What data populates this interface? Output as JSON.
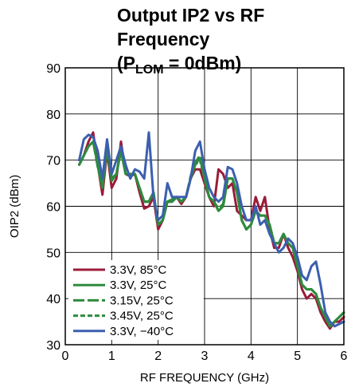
{
  "chart_data": {
    "type": "line",
    "title_line1": "Output IP2 vs RF Frequency",
    "title_line2_prefix": "(P",
    "title_line2_sub": "LOM",
    "title_line2_suffix": " = 0dBm)",
    "xlabel": "RF FREQUENCY (GHz)",
    "ylabel": "OIP2 (dBm)",
    "xlim": [
      0,
      6
    ],
    "ylim": [
      30,
      90
    ],
    "xticks": [
      "0",
      "1",
      "2",
      "3",
      "4",
      "5",
      "6"
    ],
    "yticks": [
      "30",
      "40",
      "50",
      "60",
      "70",
      "80",
      "90"
    ],
    "grid": true,
    "legend_position": "bottom-left",
    "series": [
      {
        "name": "3.3V, 85°C",
        "color": "#9b1b3a",
        "dash": "solid",
        "points": [
          [
            0.3,
            69
          ],
          [
            0.4,
            71
          ],
          [
            0.5,
            74
          ],
          [
            0.6,
            76
          ],
          [
            0.7,
            69
          ],
          [
            0.8,
            62.5
          ],
          [
            0.9,
            72
          ],
          [
            1.0,
            64
          ],
          [
            1.1,
            66
          ],
          [
            1.2,
            74
          ],
          [
            1.3,
            67
          ],
          [
            1.4,
            66.5
          ],
          [
            1.5,
            67
          ],
          [
            1.6,
            63
          ],
          [
            1.7,
            59.5
          ],
          [
            1.8,
            60
          ],
          [
            1.9,
            62
          ],
          [
            2.0,
            55
          ],
          [
            2.1,
            57
          ],
          [
            2.2,
            61
          ],
          [
            2.3,
            61
          ],
          [
            2.4,
            62
          ],
          [
            2.5,
            60.5
          ],
          [
            2.6,
            62
          ],
          [
            2.7,
            66
          ],
          [
            2.8,
            68
          ],
          [
            2.9,
            68
          ],
          [
            3.0,
            65
          ],
          [
            3.1,
            62
          ],
          [
            3.2,
            60
          ],
          [
            3.3,
            68
          ],
          [
            3.4,
            67
          ],
          [
            3.5,
            64
          ],
          [
            3.6,
            65
          ],
          [
            3.7,
            59
          ],
          [
            3.8,
            58
          ],
          [
            3.9,
            57
          ],
          [
            4.0,
            57
          ],
          [
            4.1,
            62
          ],
          [
            4.2,
            59
          ],
          [
            4.3,
            62
          ],
          [
            4.4,
            55
          ],
          [
            4.5,
            51
          ],
          [
            4.6,
            51
          ],
          [
            4.7,
            54
          ],
          [
            4.8,
            51
          ],
          [
            4.9,
            49
          ],
          [
            5.0,
            46
          ],
          [
            5.1,
            42
          ],
          [
            5.2,
            40
          ],
          [
            5.3,
            41
          ],
          [
            5.4,
            40
          ],
          [
            5.5,
            37
          ],
          [
            5.6,
            35
          ],
          [
            5.7,
            33.5
          ],
          [
            5.8,
            35
          ],
          [
            5.9,
            35
          ],
          [
            6.0,
            36
          ]
        ]
      },
      {
        "name": "3.3V, 25°C",
        "color": "#2e8b3e",
        "dash": "solid",
        "points": [
          [
            0.3,
            69
          ],
          [
            0.4,
            71
          ],
          [
            0.5,
            73
          ],
          [
            0.6,
            74
          ],
          [
            0.7,
            69
          ],
          [
            0.8,
            64
          ],
          [
            0.9,
            73
          ],
          [
            1.0,
            66
          ],
          [
            1.1,
            67
          ],
          [
            1.2,
            72
          ],
          [
            1.3,
            67
          ],
          [
            1.4,
            67
          ],
          [
            1.5,
            67
          ],
          [
            1.6,
            64
          ],
          [
            1.7,
            61
          ],
          [
            1.8,
            61
          ],
          [
            1.9,
            63
          ],
          [
            2.0,
            56
          ],
          [
            2.1,
            57
          ],
          [
            2.2,
            61
          ],
          [
            2.3,
            61
          ],
          [
            2.4,
            62
          ],
          [
            2.5,
            61
          ],
          [
            2.6,
            62
          ],
          [
            2.7,
            66
          ],
          [
            2.8,
            69
          ],
          [
            2.9,
            70.5
          ],
          [
            3.0,
            66
          ],
          [
            3.1,
            62
          ],
          [
            3.2,
            61
          ],
          [
            3.3,
            59
          ],
          [
            3.4,
            60
          ],
          [
            3.5,
            66
          ],
          [
            3.6,
            66
          ],
          [
            3.7,
            63
          ],
          [
            3.8,
            57
          ],
          [
            3.9,
            55
          ],
          [
            4.0,
            56
          ],
          [
            4.1,
            59
          ],
          [
            4.2,
            58
          ],
          [
            4.3,
            58
          ],
          [
            4.4,
            56
          ],
          [
            4.5,
            52
          ],
          [
            4.6,
            52
          ],
          [
            4.7,
            54
          ],
          [
            4.8,
            52
          ],
          [
            4.9,
            51
          ],
          [
            5.0,
            47
          ],
          [
            5.1,
            43
          ],
          [
            5.2,
            42
          ],
          [
            5.3,
            42
          ],
          [
            5.4,
            41
          ],
          [
            5.5,
            38
          ],
          [
            5.6,
            36
          ],
          [
            5.7,
            34
          ],
          [
            5.8,
            35
          ],
          [
            5.9,
            36
          ],
          [
            6.0,
            37
          ]
        ]
      },
      {
        "name": "3.15V, 25°C",
        "color": "#2e8b3e",
        "dash": "long",
        "points": [
          [
            0.3,
            69
          ],
          [
            0.4,
            71
          ],
          [
            0.5,
            73
          ],
          [
            0.6,
            74
          ],
          [
            0.7,
            68.5
          ],
          [
            0.8,
            64
          ],
          [
            0.9,
            72.5
          ],
          [
            1.0,
            65.5
          ],
          [
            1.1,
            67
          ],
          [
            1.2,
            72.5
          ],
          [
            1.3,
            67
          ],
          [
            1.4,
            67
          ],
          [
            1.5,
            67
          ],
          [
            1.6,
            64
          ],
          [
            1.7,
            61
          ],
          [
            1.8,
            61
          ],
          [
            1.9,
            63
          ],
          [
            2.0,
            56
          ],
          [
            2.1,
            57
          ],
          [
            2.2,
            61
          ],
          [
            2.3,
            61.5
          ],
          [
            2.4,
            62
          ],
          [
            2.5,
            61
          ],
          [
            2.6,
            62
          ],
          [
            2.7,
            66.5
          ],
          [
            2.8,
            69.5
          ],
          [
            2.9,
            71
          ],
          [
            3.0,
            66
          ],
          [
            3.1,
            62
          ],
          [
            3.2,
            61
          ],
          [
            3.3,
            59.5
          ],
          [
            3.4,
            60.5
          ],
          [
            3.5,
            66
          ],
          [
            3.6,
            66
          ],
          [
            3.7,
            63
          ],
          [
            3.8,
            57
          ],
          [
            3.9,
            55
          ],
          [
            4.0,
            56
          ],
          [
            4.1,
            59
          ],
          [
            4.2,
            58
          ],
          [
            4.3,
            58
          ],
          [
            4.4,
            56
          ],
          [
            4.5,
            52
          ],
          [
            4.6,
            52
          ],
          [
            4.7,
            54
          ],
          [
            4.8,
            52
          ],
          [
            4.9,
            51
          ],
          [
            5.0,
            47
          ],
          [
            5.1,
            43
          ],
          [
            5.2,
            42
          ],
          [
            5.3,
            42
          ],
          [
            5.4,
            41
          ],
          [
            5.5,
            38
          ],
          [
            5.6,
            36
          ],
          [
            5.7,
            34
          ],
          [
            5.8,
            35
          ],
          [
            5.9,
            36
          ],
          [
            6.0,
            37
          ]
        ]
      },
      {
        "name": "3.45V, 25°C",
        "color": "#2e8b3e",
        "dash": "short",
        "points": [
          [
            0.3,
            69
          ],
          [
            0.4,
            71
          ],
          [
            0.5,
            73
          ],
          [
            0.6,
            74
          ],
          [
            0.7,
            69
          ],
          [
            0.8,
            64.5
          ],
          [
            0.9,
            73
          ],
          [
            1.0,
            66
          ],
          [
            1.1,
            67
          ],
          [
            1.2,
            72
          ],
          [
            1.3,
            67
          ],
          [
            1.4,
            67
          ],
          [
            1.5,
            67
          ],
          [
            1.6,
            64
          ],
          [
            1.7,
            61
          ],
          [
            1.8,
            61
          ],
          [
            1.9,
            63
          ],
          [
            2.0,
            56
          ],
          [
            2.1,
            57
          ],
          [
            2.2,
            61
          ],
          [
            2.3,
            61
          ],
          [
            2.4,
            62
          ],
          [
            2.5,
            61
          ],
          [
            2.6,
            62
          ],
          [
            2.7,
            66
          ],
          [
            2.8,
            69
          ],
          [
            2.9,
            70
          ],
          [
            3.0,
            66
          ],
          [
            3.1,
            62
          ],
          [
            3.2,
            61
          ],
          [
            3.3,
            59
          ],
          [
            3.4,
            60
          ],
          [
            3.5,
            66
          ],
          [
            3.6,
            66
          ],
          [
            3.7,
            63
          ],
          [
            3.8,
            57
          ],
          [
            3.9,
            55
          ],
          [
            4.0,
            56
          ],
          [
            4.1,
            59
          ],
          [
            4.2,
            58
          ],
          [
            4.3,
            58
          ],
          [
            4.4,
            56
          ],
          [
            4.5,
            52
          ],
          [
            4.6,
            52
          ],
          [
            4.7,
            54
          ],
          [
            4.8,
            52
          ],
          [
            4.9,
            51
          ],
          [
            5.0,
            47
          ],
          [
            5.1,
            43
          ],
          [
            5.2,
            42
          ],
          [
            5.3,
            42
          ],
          [
            5.4,
            41
          ],
          [
            5.5,
            38
          ],
          [
            5.6,
            36
          ],
          [
            5.7,
            34
          ],
          [
            5.8,
            35
          ],
          [
            5.9,
            36
          ],
          [
            6.0,
            37
          ]
        ]
      },
      {
        "name": "3.3V, −40°C",
        "color": "#3b5fb0",
        "dash": "solid",
        "points": [
          [
            0.3,
            70
          ],
          [
            0.4,
            74.5
          ],
          [
            0.5,
            75.5
          ],
          [
            0.6,
            75
          ],
          [
            0.7,
            72
          ],
          [
            0.8,
            66
          ],
          [
            0.9,
            74.5
          ],
          [
            1.0,
            67
          ],
          [
            1.1,
            70
          ],
          [
            1.2,
            73
          ],
          [
            1.3,
            69
          ],
          [
            1.4,
            66
          ],
          [
            1.5,
            68
          ],
          [
            1.6,
            67.5
          ],
          [
            1.7,
            66
          ],
          [
            1.8,
            76
          ],
          [
            1.9,
            62
          ],
          [
            2.0,
            57
          ],
          [
            2.1,
            58
          ],
          [
            2.2,
            65
          ],
          [
            2.3,
            62
          ],
          [
            2.4,
            62
          ],
          [
            2.5,
            62
          ],
          [
            2.6,
            62
          ],
          [
            2.7,
            66
          ],
          [
            2.8,
            72
          ],
          [
            2.9,
            74
          ],
          [
            3.0,
            68
          ],
          [
            3.1,
            64
          ],
          [
            3.2,
            62
          ],
          [
            3.3,
            61
          ],
          [
            3.4,
            62
          ],
          [
            3.5,
            68.5
          ],
          [
            3.6,
            68
          ],
          [
            3.7,
            65
          ],
          [
            3.8,
            60
          ],
          [
            3.9,
            57
          ],
          [
            4.0,
            57
          ],
          [
            4.1,
            60
          ],
          [
            4.2,
            56
          ],
          [
            4.3,
            57
          ],
          [
            4.4,
            54
          ],
          [
            4.5,
            52
          ],
          [
            4.6,
            50
          ],
          [
            4.7,
            51
          ],
          [
            4.8,
            53
          ],
          [
            4.9,
            52
          ],
          [
            5.0,
            49
          ],
          [
            5.1,
            45
          ],
          [
            5.2,
            44
          ],
          [
            5.3,
            47
          ],
          [
            5.4,
            48
          ],
          [
            5.5,
            43
          ],
          [
            5.6,
            37
          ],
          [
            5.7,
            35
          ],
          [
            5.8,
            34
          ],
          [
            5.9,
            34.5
          ],
          [
            6.0,
            35
          ]
        ]
      }
    ]
  }
}
